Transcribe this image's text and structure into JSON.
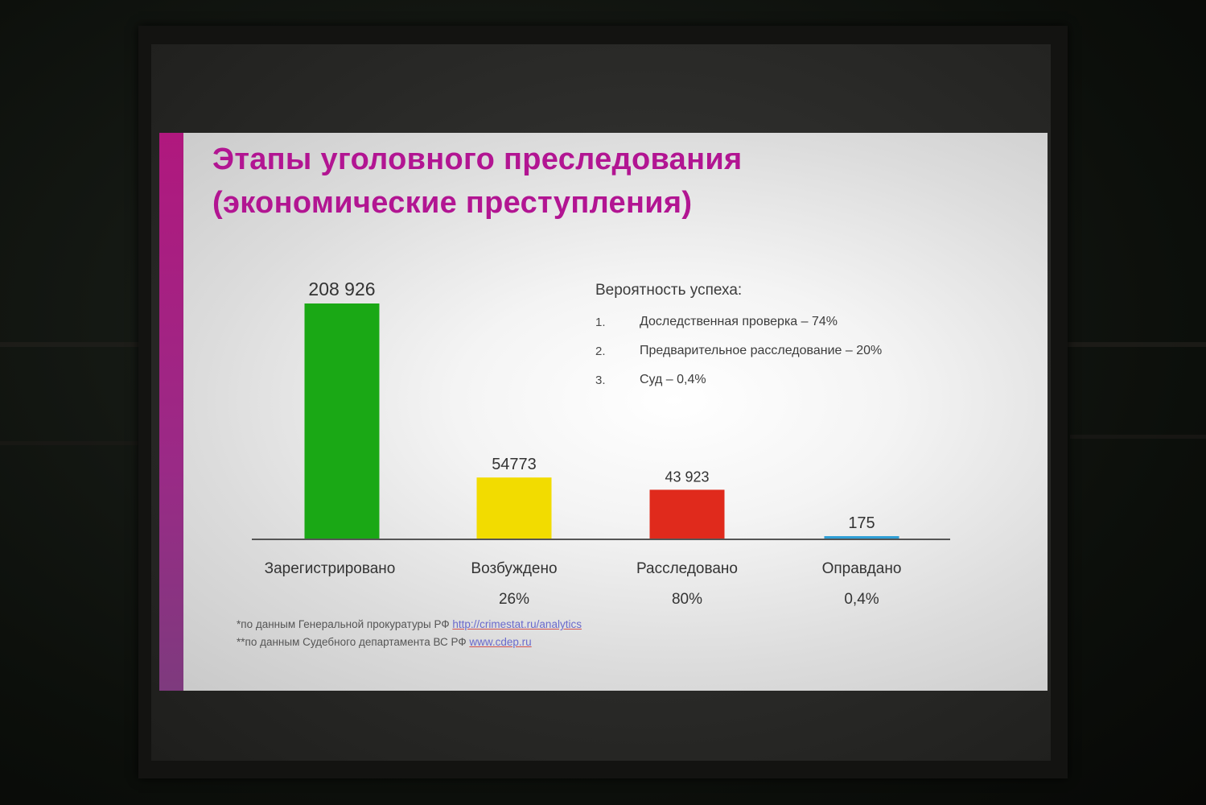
{
  "slide": {
    "title_line1": "Этапы уголовного преследования",
    "title_line2": "(экономические преступления)",
    "accent_color": "#b0187e"
  },
  "chart_data": {
    "type": "bar",
    "categories": [
      "Зарегистрировано",
      "Возбуждено",
      "Расследовано",
      "Оправдано"
    ],
    "values": [
      208926,
      54773,
      43923,
      175
    ],
    "value_labels": [
      "208 926",
      "54773",
      "43 923",
      "175"
    ],
    "percent_labels": [
      "",
      "26%",
      "80%",
      "0,4%"
    ],
    "colors": [
      "#1aa815",
      "#f2dc00",
      "#e02a1c",
      "#2f9fd6"
    ],
    "ylim": [
      0,
      208926
    ],
    "grid": false,
    "legend": "none"
  },
  "probability": {
    "heading": "Вероятность успеха:",
    "items": [
      {
        "num": "1.",
        "text": "Доследственная проверка – 74%"
      },
      {
        "num": "2.",
        "text": "Предварительное расследование – 20%"
      },
      {
        "num": "3.",
        "text": "Суд – 0,4%"
      }
    ]
  },
  "notes": [
    {
      "text": "*по данным Генеральной прокуратуры РФ ",
      "link": "http://crimestat.ru/analytics"
    },
    {
      "text": "**по данным Судебного департамента ВС РФ ",
      "link": "www.cdep.ru"
    }
  ]
}
